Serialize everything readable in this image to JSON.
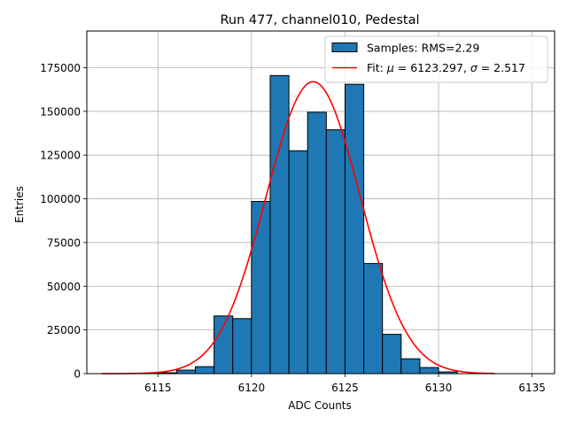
{
  "chart_data": {
    "type": "bar",
    "title": "Run 477, channel010, Pedestal",
    "xlabel": "ADC Counts",
    "ylabel": "Entries",
    "xlim": [
      6111.2,
      6136.2
    ],
    "ylim": [
      0,
      196000
    ],
    "xticks": [
      6115,
      6120,
      6125,
      6130,
      6135
    ],
    "yticks": [
      0,
      25000,
      50000,
      75000,
      100000,
      125000,
      150000,
      175000
    ],
    "grid": true,
    "bar_color": "#1f77b4",
    "fit_color": "#ff0000",
    "legend": {
      "placement": "top-right",
      "samples_label": "Samples: RMS=2.29",
      "fit_label_prefix": "Fit: ",
      "fit_mu_symbol": "μ",
      "fit_mu_value": " = 6123.297, ",
      "fit_sigma_symbol": "σ",
      "fit_sigma_value": " = 2.517"
    },
    "histogram": {
      "bin_edges": [
        6115,
        6116,
        6117,
        6118,
        6119,
        6120,
        6121,
        6122,
        6123,
        6124,
        6125,
        6126,
        6127,
        6128,
        6129,
        6130,
        6131
      ],
      "counts": [
        500,
        2000,
        4000,
        33000,
        31500,
        98500,
        170500,
        127500,
        149500,
        139500,
        165500,
        63000,
        22500,
        8500,
        3500,
        1000
      ]
    },
    "fit": {
      "mu": 6123.297,
      "sigma": 2.517,
      "amplitude": 167000,
      "x_range": [
        6112,
        6133
      ]
    }
  }
}
